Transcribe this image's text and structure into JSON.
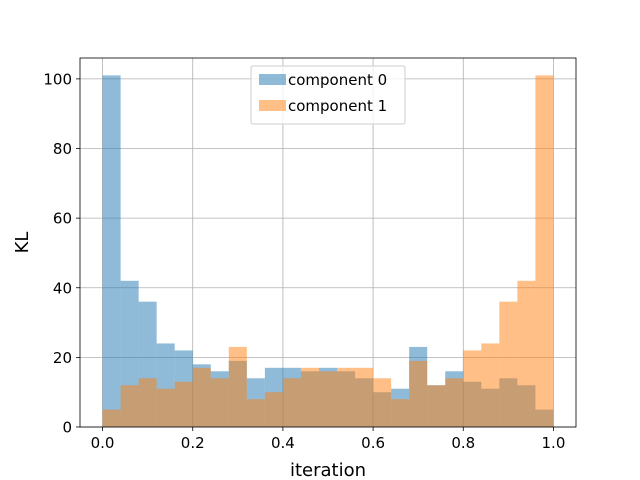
{
  "chart_data": {
    "type": "bar",
    "subtype": "overlapping-histogram",
    "title": "",
    "xlabel": "iteration",
    "ylabel": "KL",
    "xlim": [
      -0.05,
      1.05
    ],
    "ylim": [
      0,
      106
    ],
    "xticks": [
      "0.0",
      "0.2",
      "0.4",
      "0.6",
      "0.8",
      "1.0"
    ],
    "yticks": [
      "0",
      "20",
      "40",
      "60",
      "80",
      "100"
    ],
    "bin_edges": [
      0.0,
      0.04,
      0.08,
      0.12,
      0.16,
      0.2,
      0.24,
      0.28,
      0.32,
      0.36,
      0.4,
      0.44,
      0.48,
      0.52,
      0.56,
      0.6,
      0.64,
      0.68,
      0.72,
      0.76,
      0.8,
      0.84,
      0.88,
      0.92,
      0.96,
      1.0
    ],
    "grid": true,
    "legend_position": "upper-center",
    "alpha": 0.5,
    "series": [
      {
        "name": "component 0",
        "color": "#1f77b4",
        "values": [
          101,
          42,
          36,
          24,
          22,
          18,
          16,
          19,
          14,
          17,
          17,
          16,
          17,
          16,
          14,
          10,
          11,
          23,
          12,
          16,
          13,
          11,
          14,
          12,
          5
        ]
      },
      {
        "name": "component 1",
        "color": "#ff7f0e",
        "values": [
          5,
          12,
          14,
          11,
          13,
          17,
          14,
          23,
          8,
          10,
          14,
          17,
          16,
          17,
          17,
          14,
          8,
          19,
          12,
          14,
          22,
          24,
          36,
          42,
          101
        ]
      }
    ]
  }
}
